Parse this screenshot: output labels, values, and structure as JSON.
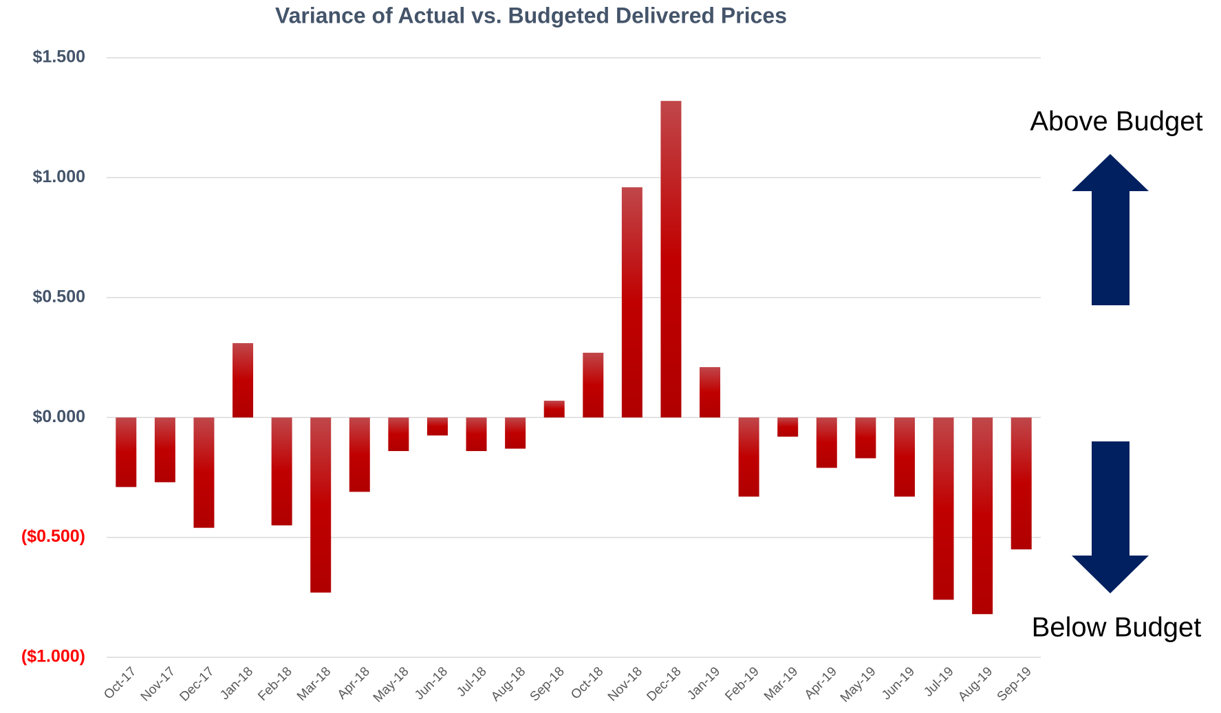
{
  "chart_data": {
    "type": "bar",
    "title": "Variance of Actual vs. Budgeted Delivered Prices",
    "categories": [
      "Oct-17",
      "Nov-17",
      "Dec-17",
      "Jan-18",
      "Feb-18",
      "Mar-18",
      "Apr-18",
      "May-18",
      "Jun-18",
      "Jul-18",
      "Aug-18",
      "Sep-18",
      "Oct-18",
      "Nov-18",
      "Dec-18",
      "Jan-19",
      "Feb-19",
      "Mar-19",
      "Apr-19",
      "May-19",
      "Jun-19",
      "Jul-19",
      "Aug-19",
      "Sep-19"
    ],
    "values": [
      -0.29,
      -0.27,
      -0.46,
      0.31,
      -0.45,
      -0.73,
      -0.31,
      -0.14,
      -0.075,
      -0.14,
      -0.13,
      0.07,
      0.27,
      0.96,
      1.32,
      0.21,
      -0.33,
      -0.08,
      -0.21,
      -0.17,
      -0.33,
      -0.76,
      -0.82,
      -0.55
    ],
    "color": "#c00000",
    "ylim": [
      -1,
      1.5
    ],
    "yticks": [
      {
        "value": -1,
        "label": "($1.000)"
      },
      {
        "value": -0.5,
        "label": "($0.500)"
      },
      {
        "value": 0,
        "label": "$0.000"
      },
      {
        "value": 0.5,
        "label": "$0.500"
      },
      {
        "value": 1,
        "label": "$1.000"
      },
      {
        "value": 1.5,
        "label": "$1.500"
      }
    ],
    "tick_label_color": "#44546a",
    "negative_tick_label_color": "#ff0000",
    "grid": true,
    "annotations": [
      "Above Budget",
      "Below Budget"
    ]
  }
}
